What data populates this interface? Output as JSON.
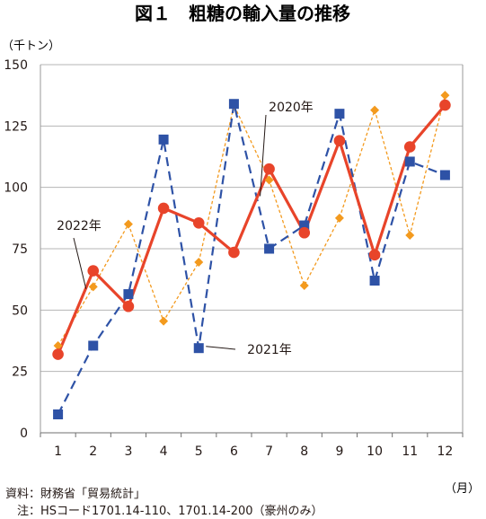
{
  "chart_data": {
    "type": "line",
    "title": "図１　粗糖の輸入量の推移",
    "y_unit_label": "（千トン）",
    "x_unit_label": "（月）",
    "categories": [
      "1",
      "2",
      "3",
      "4",
      "5",
      "6",
      "7",
      "8",
      "9",
      "10",
      "11",
      "12"
    ],
    "ylim": [
      0,
      150
    ],
    "yticks": [
      "0",
      "25",
      "50",
      "75",
      "100",
      "125",
      "150"
    ],
    "grid": true,
    "series": [
      {
        "name": "2020年",
        "color": "#f39a1e",
        "marker": "diamond",
        "line": "dotted",
        "values": [
          35.5,
          59.5,
          85,
          45.5,
          69.5,
          133.5,
          103,
          60,
          87.5,
          131.5,
          80.5,
          137.5
        ]
      },
      {
        "name": "2021年",
        "color": "#2e52a6",
        "marker": "square",
        "line": "dashed",
        "values": [
          7.5,
          35.5,
          56.5,
          119.5,
          34.5,
          134,
          75,
          84.5,
          130,
          62,
          110.5,
          105
        ]
      },
      {
        "name": "2022年",
        "color": "#e8442a",
        "marker": "circle",
        "line": "solid",
        "values": [
          32,
          66,
          51.5,
          91.5,
          85.5,
          73.5,
          107.5,
          81.5,
          119,
          72.5,
          116.5,
          133.5
        ]
      }
    ]
  },
  "footer": {
    "source": "資料：財務省「貿易統計」",
    "note": "　注：HSコード1701.14-110、1701.14-200（豪州のみ）"
  }
}
